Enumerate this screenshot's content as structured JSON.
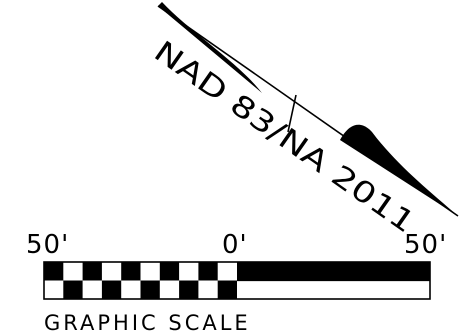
{
  "north_arrow": {
    "datum_label": "NAD 83/NA 2011"
  },
  "graphic_scale": {
    "left_label": "50'",
    "center_label": "0'",
    "right_label": "50'",
    "caption": "GRAPHIC SCALE"
  }
}
